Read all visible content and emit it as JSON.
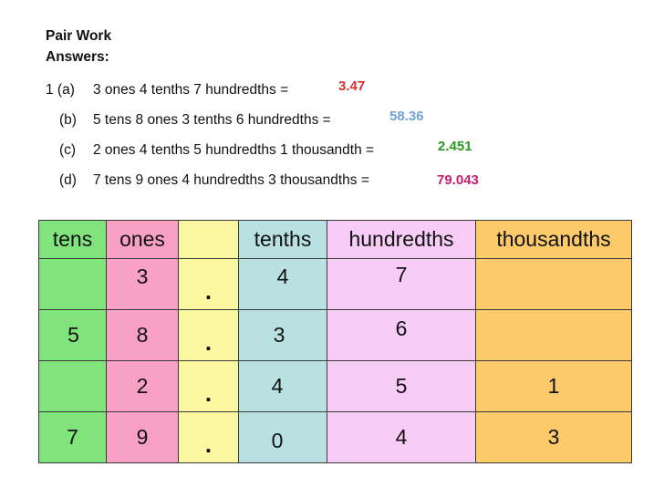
{
  "title_line1": "Pair Work",
  "title_line2": "Answers:",
  "questions": [
    {
      "label": "1 (a)",
      "text": "3 ones 4 tenths 7 hundredths =",
      "answer": "3.47",
      "answer_color": "#d62f2f"
    },
    {
      "label": "(b)",
      "text": "5 tens 8 ones 3 tenths 6 hundredths =",
      "answer": "58.36",
      "answer_color": "#6fa3d8"
    },
    {
      "label": "(c)",
      "text": "2 ones 4 tenths 5 hundredths 1 thousandth =",
      "answer": "2.451",
      "answer_color": "#2a9a1e"
    },
    {
      "label": "(d)",
      "text": "7 tens 9 ones 4 hundredths 3 thousandths =",
      "answer": "79.043",
      "answer_color": "#c4206e"
    }
  ],
  "table": {
    "headers": [
      "tens",
      "ones",
      "",
      "tenths",
      "hundredths",
      "thousandths"
    ],
    "rows": [
      [
        "",
        "3",
        ".",
        "4",
        "7",
        ""
      ],
      [
        "5",
        "8",
        ".",
        "3",
        "6",
        ""
      ],
      [
        "",
        "2",
        ".",
        "4",
        "5",
        "1"
      ],
      [
        "7",
        "9",
        ".",
        "0",
        "4",
        "3"
      ]
    ]
  },
  "colors": {
    "tens": "#80e37c",
    "ones": "#f9a0c5",
    "decimal_point": "#fbf6a2",
    "tenths": "#b9e1e2",
    "hundredths": "#f7cdf7",
    "thousandths": "#fcc96b"
  }
}
